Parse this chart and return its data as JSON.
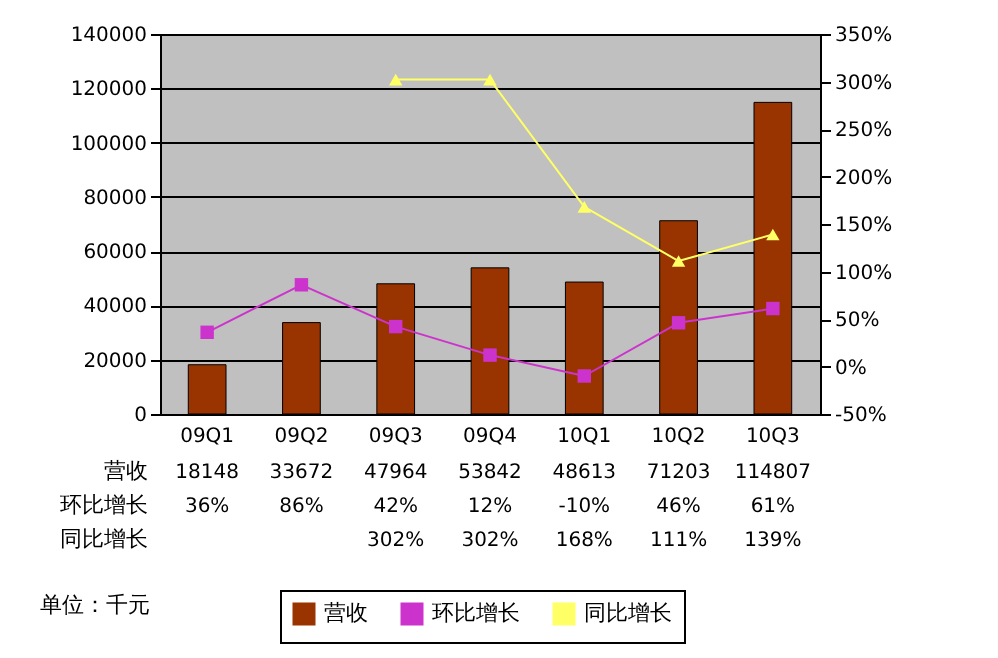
{
  "chart_data": {
    "type": "bar",
    "categories": [
      "09Q1",
      "09Q2",
      "09Q3",
      "09Q4",
      "10Q1",
      "10Q2",
      "10Q3"
    ],
    "series": [
      {
        "name": "营收",
        "color": "#993300",
        "values": [
          18148,
          33672,
          47964,
          53842,
          48613,
          71203,
          114807
        ],
        "value_labels": [
          "18148",
          "33672",
          "47964",
          "53842",
          "48613",
          "71203",
          "114807"
        ]
      },
      {
        "name": "环比增长",
        "type": "line",
        "axis": "y2",
        "marker": "square",
        "color": "#cc33cc",
        "values": [
          36,
          86,
          42,
          12,
          -10,
          46,
          61
        ],
        "value_labels": [
          "36%",
          "86%",
          "42%",
          "12%",
          "-10%",
          "46%",
          "61%"
        ]
      },
      {
        "name": "同比增长",
        "type": "line",
        "axis": "y2",
        "marker": "triangle",
        "color": "#ffff66",
        "values": [
          null,
          null,
          302,
          302,
          168,
          111,
          139
        ],
        "value_labels": [
          null,
          null,
          "302%",
          "302%",
          "168%",
          "111%",
          "139%"
        ]
      }
    ],
    "ylim": [
      0,
      140000
    ],
    "yticks": [
      0,
      20000,
      40000,
      60000,
      80000,
      100000,
      120000,
      140000
    ],
    "y2lim": [
      -50,
      350
    ],
    "y2ticks": [
      {
        "value": -50,
        "label": "-50%"
      },
      {
        "value": 0,
        "label": "0%"
      },
      {
        "value": 50,
        "label": "50%"
      },
      {
        "value": 100,
        "label": "100%"
      },
      {
        "value": 150,
        "label": "150%"
      },
      {
        "value": 200,
        "label": "200%"
      },
      {
        "value": 250,
        "label": "250%"
      },
      {
        "value": 300,
        "label": "300%"
      },
      {
        "value": 350,
        "label": "350%"
      }
    ],
    "grid": "y",
    "legend": "bottom",
    "annotations": [
      "单位：千元"
    ]
  }
}
